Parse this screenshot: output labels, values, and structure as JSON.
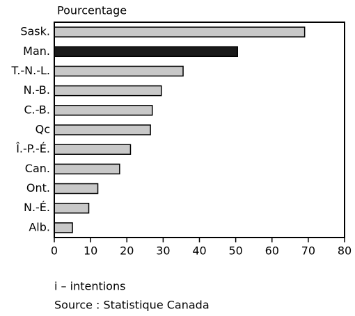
{
  "chart_data": {
    "type": "bar",
    "orientation": "horizontal",
    "title": "Pourcentage",
    "categories": [
      "Sask.",
      "Man.",
      "T.-N.-L.",
      "N.-B.",
      "C.-B.",
      "Qc",
      "Î.-P.-É.",
      "Can.",
      "Ont.",
      "N.-É.",
      "Alb."
    ],
    "values": [
      69,
      50.5,
      35.5,
      29.5,
      27,
      26.5,
      21,
      18,
      12,
      9.5,
      5
    ],
    "colors": [
      "#c8c8c8",
      "#1a1a1a",
      "#c8c8c8",
      "#c8c8c8",
      "#c8c8c8",
      "#c8c8c8",
      "#c8c8c8",
      "#c8c8c8",
      "#c8c8c8",
      "#c8c8c8",
      "#c8c8c8"
    ],
    "xlim": [
      0,
      80
    ],
    "xticks": [
      0,
      10,
      20,
      30,
      40,
      50,
      60,
      70,
      80
    ],
    "notes": [
      "i – intentions",
      "Source : Statistique Canada"
    ]
  }
}
